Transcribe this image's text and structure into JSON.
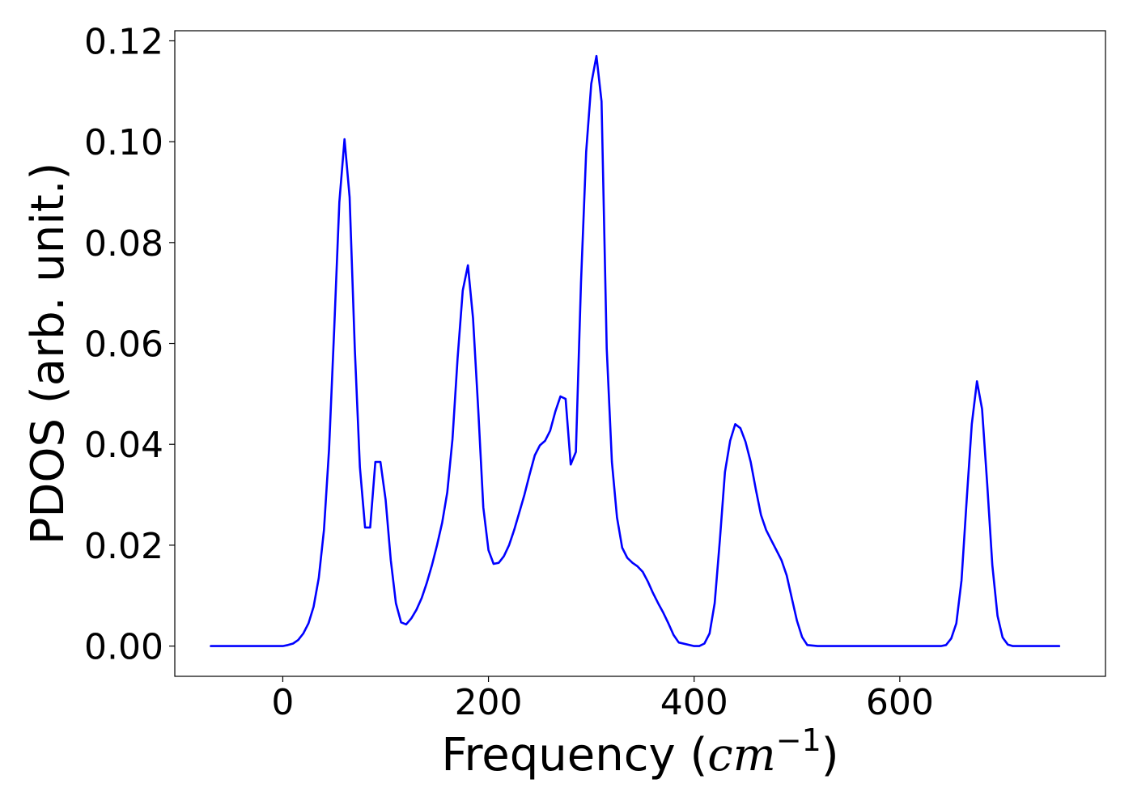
{
  "chart_data": {
    "type": "line",
    "title": "",
    "xlabel": {
      "prefix": "Frequency (",
      "math": "cm",
      "superscript": "−1",
      "suffix": ")"
    },
    "ylabel": "PDOS (arb. unit.)",
    "xlim": [
      -105,
      800
    ],
    "ylim": [
      -0.006,
      0.122
    ],
    "xticks": [
      0,
      200,
      400,
      600
    ],
    "xtick_labels": [
      "0",
      "200",
      "400",
      "600"
    ],
    "yticks": [
      0.0,
      0.02,
      0.04,
      0.06,
      0.08,
      0.1,
      0.12
    ],
    "ytick_labels": [
      "0.00",
      "0.02",
      "0.04",
      "0.06",
      "0.08",
      "0.10",
      "0.12"
    ],
    "grid": false,
    "legend": "none",
    "series": [
      {
        "color": "#0000ff",
        "x": [
          -70,
          0,
          5,
          10,
          15,
          20,
          25,
          30,
          35,
          40,
          45,
          50,
          55,
          60,
          65,
          70,
          75,
          80,
          85,
          90,
          95,
          100,
          105,
          110,
          115,
          120,
          125,
          130,
          135,
          140,
          145,
          150,
          155,
          160,
          165,
          170,
          175,
          180,
          185,
          190,
          195,
          200,
          205,
          210,
          215,
          220,
          225,
          230,
          235,
          240,
          245,
          250,
          255,
          260,
          265,
          270,
          275,
          280,
          285,
          290,
          295,
          300,
          305,
          310,
          315,
          320,
          325,
          330,
          335,
          340,
          345,
          350,
          355,
          360,
          365,
          370,
          375,
          380,
          385,
          400,
          405,
          410,
          415,
          420,
          425,
          430,
          435,
          440,
          445,
          450,
          455,
          460,
          465,
          470,
          475,
          480,
          485,
          490,
          495,
          500,
          505,
          510,
          520,
          640,
          645,
          650,
          655,
          660,
          665,
          670,
          675,
          680,
          685,
          690,
          695,
          700,
          705,
          710,
          720,
          755
        ],
        "y": [
          0.0,
          0.0,
          0.0002,
          0.0005,
          0.0012,
          0.0025,
          0.0045,
          0.0078,
          0.0135,
          0.023,
          0.039,
          0.063,
          0.088,
          0.1005,
          0.089,
          0.059,
          0.0355,
          0.0235,
          0.0235,
          0.0365,
          0.0365,
          0.029,
          0.017,
          0.0085,
          0.0047,
          0.0043,
          0.0055,
          0.0072,
          0.0095,
          0.0125,
          0.016,
          0.02,
          0.0245,
          0.0305,
          0.041,
          0.057,
          0.0705,
          0.0755,
          0.065,
          0.047,
          0.0275,
          0.019,
          0.0163,
          0.0165,
          0.0178,
          0.02,
          0.023,
          0.0265,
          0.03,
          0.034,
          0.0378,
          0.0398,
          0.0407,
          0.0427,
          0.0465,
          0.0495,
          0.049,
          0.036,
          0.0385,
          0.072,
          0.098,
          0.1115,
          0.117,
          0.108,
          0.059,
          0.0365,
          0.0255,
          0.0195,
          0.0175,
          0.0165,
          0.0158,
          0.0147,
          0.0128,
          0.0105,
          0.0085,
          0.0066,
          0.0045,
          0.0022,
          0.0007,
          0.0,
          0.0,
          0.0005,
          0.0025,
          0.0085,
          0.021,
          0.0345,
          0.0407,
          0.044,
          0.0432,
          0.0405,
          0.0365,
          0.031,
          0.026,
          0.023,
          0.021,
          0.019,
          0.017,
          0.014,
          0.0095,
          0.005,
          0.0018,
          0.0002,
          0.0,
          0.0,
          0.0002,
          0.0015,
          0.0045,
          0.013,
          0.029,
          0.044,
          0.0525,
          0.047,
          0.032,
          0.016,
          0.006,
          0.0017,
          0.0003,
          0.0,
          0.0,
          0.0
        ]
      }
    ]
  }
}
